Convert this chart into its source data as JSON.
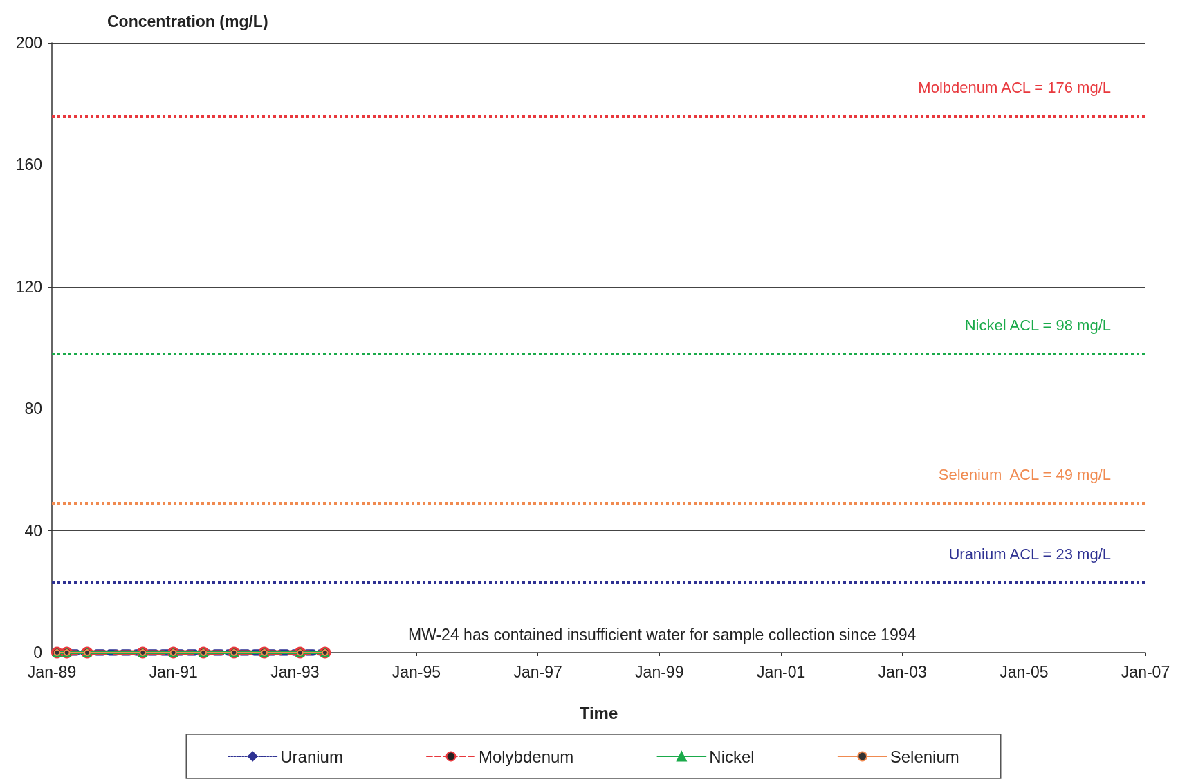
{
  "chart_data": {
    "type": "line",
    "ylabel": "Concentration (mg/L)",
    "xlabel": "Time",
    "x": [
      "1989-02",
      "1989-04",
      "1989-08",
      "1990-07",
      "1991-01",
      "1991-07",
      "1992-01",
      "1992-07",
      "1993-02",
      "1993-07"
    ],
    "series": [
      {
        "name": "Uranium",
        "color": "#2e3192",
        "marker": "diamond",
        "line_style": "dotted",
        "values": [
          0,
          0,
          0,
          0,
          0,
          0,
          0,
          0,
          0,
          0
        ]
      },
      {
        "name": "Molybdenum",
        "color": "#e8383d",
        "marker": "circle",
        "line_style": "dashed",
        "values": [
          0,
          0,
          0,
          0,
          0,
          0,
          0,
          0,
          0,
          0
        ]
      },
      {
        "name": "Nickel",
        "color": "#1aaa4a",
        "marker": "triangle",
        "line_style": "solid",
        "values": [
          0,
          0,
          0,
          0,
          0,
          0,
          0,
          0,
          0,
          0
        ]
      },
      {
        "name": "Selenium",
        "color": "#f08a50",
        "marker": "circle",
        "line_style": "solid",
        "values": [
          0,
          0,
          0,
          0,
          0,
          0,
          0,
          0,
          0,
          0
        ]
      }
    ],
    "xlim": [
      "1989-01",
      "2007-01"
    ],
    "xticks": [
      {
        "value": "1989-01",
        "label": "Jan-89"
      },
      {
        "value": "1991-01",
        "label": "Jan-91"
      },
      {
        "value": "1993-01",
        "label": "Jan-93"
      },
      {
        "value": "1995-01",
        "label": "Jan-95"
      },
      {
        "value": "1997-01",
        "label": "Jan-97"
      },
      {
        "value": "1999-01",
        "label": "Jan-99"
      },
      {
        "value": "2001-01",
        "label": "Jan-01"
      },
      {
        "value": "2003-01",
        "label": "Jan-03"
      },
      {
        "value": "2005-01",
        "label": "Jan-05"
      },
      {
        "value": "2007-01",
        "label": "Jan-07"
      }
    ],
    "ylim": [
      0,
      200
    ],
    "yticks": [
      0,
      40,
      80,
      120,
      160,
      200
    ],
    "grid": "y",
    "legend": "bottom",
    "ref_lines": [
      {
        "axis": "y",
        "value": 176,
        "label": "Molbdenum ACL = 176 mg/L",
        "color": "#e8383d",
        "line_style": "dotted"
      },
      {
        "axis": "y",
        "value": 98,
        "label": "Nickel ACL = 98 mg/L",
        "color": "#1aaa4a",
        "line_style": "dotted"
      },
      {
        "axis": "y",
        "value": 49,
        "label": "Selenium  ACL = 49 mg/L",
        "color": "#f08a50",
        "line_style": "dotted"
      },
      {
        "axis": "y",
        "value": 23,
        "label": "Uranium ACL = 23 mg/L",
        "color": "#2e3192",
        "line_style": "dotted"
      }
    ],
    "annotations": [
      "MW-24 has contained insufficient water for sample collection since 1994"
    ]
  }
}
